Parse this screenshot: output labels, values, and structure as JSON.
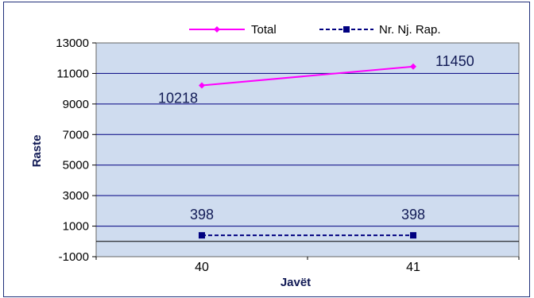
{
  "chart_data": {
    "type": "line",
    "xlabel": "Javët",
    "ylabel": "Raste",
    "categories": [
      "40",
      "41"
    ],
    "ylim": [
      -1000,
      13000
    ],
    "yticks": [
      "13000",
      "11000",
      "9000",
      "7000",
      "5000",
      "3000",
      "1000",
      "-1000"
    ],
    "grid": true,
    "legend_position": "top",
    "plot_background": "#cfdcef",
    "series": [
      {
        "name": "Total",
        "values": [
          10218,
          11450
        ],
        "labels": [
          "10218",
          "11450"
        ],
        "color": "#ff00ff",
        "marker": "diamond",
        "line_style": "solid"
      },
      {
        "name": "Nr. Nj. Rap.",
        "values": [
          398,
          398
        ],
        "labels": [
          "398",
          "398"
        ],
        "color": "#000080",
        "marker": "square",
        "line_style": "dashed"
      }
    ]
  }
}
